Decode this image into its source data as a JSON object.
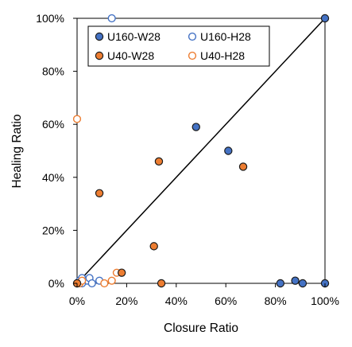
{
  "chart_data": {
    "type": "scatter",
    "xlabel": "Closure Ratio",
    "ylabel": "Healing Ratio",
    "xlim": [
      0,
      1
    ],
    "ylim": [
      0,
      1
    ],
    "x_ticks": [
      "0%",
      "20%",
      "40%",
      "60%",
      "80%",
      "100%"
    ],
    "y_ticks": [
      "0%",
      "20%",
      "40%",
      "60%",
      "80%",
      "100%"
    ],
    "grid": false,
    "legend_position": "top-left, 2 columns",
    "reference_line": {
      "type": "y=x",
      "from": [
        0,
        0
      ],
      "to": [
        1,
        1
      ],
      "color": "#000000"
    },
    "series": [
      {
        "name": "U160-W28",
        "marker": "filled",
        "color": "#4472C4",
        "points": [
          [
            0.48,
            0.59
          ],
          [
            0.61,
            0.5
          ],
          [
            1.0,
            1.0
          ],
          [
            0.82,
            0.0
          ],
          [
            0.88,
            0.01
          ],
          [
            0.91,
            0.0
          ],
          [
            1.0,
            0.0
          ]
        ]
      },
      {
        "name": "U160-H28",
        "marker": "hollow",
        "color": "#4472C4",
        "points": [
          [
            0.14,
            1.0
          ],
          [
            0.01,
            0.01
          ],
          [
            0.02,
            0.02
          ],
          [
            0.04,
            0.01
          ],
          [
            0.05,
            0.02
          ],
          [
            0.06,
            0.0
          ],
          [
            0.09,
            0.01
          ],
          [
            0.02,
            0.0
          ]
        ]
      },
      {
        "name": "U40-W28",
        "marker": "filled",
        "color": "#ED7D31",
        "points": [
          [
            0.09,
            0.34
          ],
          [
            0.33,
            0.46
          ],
          [
            0.67,
            0.44
          ],
          [
            0.31,
            0.14
          ],
          [
            0.18,
            0.04
          ],
          [
            0.34,
            0.0
          ],
          [
            0.0,
            0.0
          ]
        ]
      },
      {
        "name": "U40-H28",
        "marker": "hollow",
        "color": "#ED7D31",
        "points": [
          [
            0.0,
            0.62
          ],
          [
            0.01,
            0.0
          ],
          [
            0.02,
            0.01
          ],
          [
            0.11,
            0.0
          ],
          [
            0.14,
            0.01
          ],
          [
            0.16,
            0.04
          ],
          [
            0.0,
            0.0
          ]
        ]
      }
    ]
  }
}
